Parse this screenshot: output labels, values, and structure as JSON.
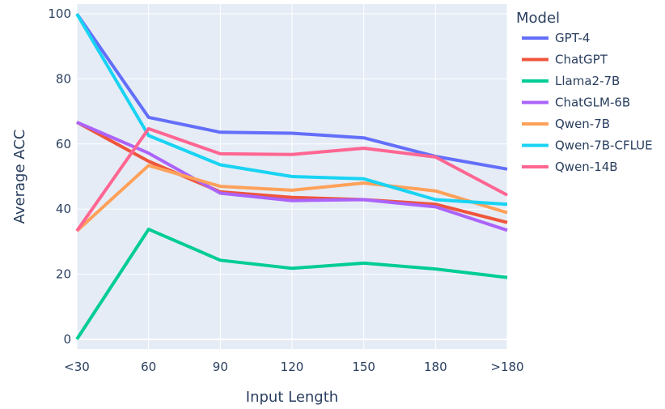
{
  "chart_data": {
    "type": "line",
    "xlabel": "Input Length",
    "ylabel": "Average ACC",
    "categories": [
      "<30",
      "60",
      "90",
      "120",
      "150",
      "180",
      ">180"
    ],
    "y_ticks": [
      0,
      20,
      40,
      60,
      80,
      100
    ],
    "ylim": [
      -3,
      103
    ],
    "grid": true,
    "legend": {
      "title": "Model",
      "position": "right"
    },
    "series": [
      {
        "name": "GPT-4",
        "color": "#636efa",
        "values": [
          100,
          68.2,
          63.6,
          63.3,
          61.9,
          56.2,
          52.3
        ]
      },
      {
        "name": "ChatGPT",
        "color": "#ef553b",
        "values": [
          66.7,
          54.7,
          45.3,
          43.6,
          42.9,
          41.5,
          35.9
        ]
      },
      {
        "name": "Llama2-7B",
        "color": "#00cc96",
        "values": [
          0,
          33.8,
          24.3,
          21.8,
          23.4,
          21.6,
          19.0
        ]
      },
      {
        "name": "ChatGLM-6B",
        "color": "#ab63fa",
        "values": [
          66.7,
          57.2,
          44.9,
          42.6,
          42.9,
          40.7,
          33.5
        ]
      },
      {
        "name": "Qwen-7B",
        "color": "#ffa15a",
        "values": [
          33.3,
          53.4,
          47.0,
          45.8,
          48.0,
          45.6,
          38.9
        ]
      },
      {
        "name": "Qwen-7B-CFLUE",
        "color": "#19d3f3",
        "values": [
          100,
          62.6,
          53.6,
          50.0,
          49.3,
          42.9,
          41.5
        ]
      },
      {
        "name": "Qwen-14B",
        "color": "#ff6692",
        "values": [
          33.3,
          64.7,
          57.0,
          56.8,
          58.7,
          56.0,
          44.3
        ]
      }
    ]
  }
}
